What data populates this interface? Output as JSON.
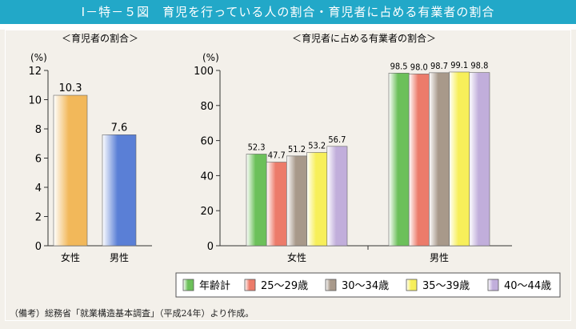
{
  "title": "Ⅰ－特－５図　育児を行っている人の割合・育児者に占める有業者の割合",
  "note": "（備考）総務省「就業構造基本調査」（平成24年）より作成。",
  "chart_data": [
    {
      "type": "bar",
      "title": "＜育児者の割合＞",
      "ylabel": "(%)",
      "ylim": [
        0,
        12
      ],
      "yticks": [
        0,
        2,
        4,
        6,
        8,
        10,
        12
      ],
      "categories": [
        "女性",
        "男性"
      ],
      "values": [
        10.3,
        7.6
      ],
      "colors": [
        "#f2b85a",
        "#5a7fd6"
      ]
    },
    {
      "type": "bar",
      "title": "＜育児者に占める有業者の割合＞",
      "ylabel": "(%)",
      "ylim": [
        0,
        100
      ],
      "yticks": [
        0,
        20,
        40,
        60,
        80,
        100
      ],
      "categories": [
        "女性",
        "男性"
      ],
      "series": [
        {
          "name": "年齢計",
          "values": [
            52.3,
            98.5
          ],
          "color": "#6cc05a"
        },
        {
          "name": "25～29歳",
          "values": [
            47.7,
            98.0
          ],
          "color": "#ec7b6a"
        },
        {
          "name": "30～34歳",
          "values": [
            51.2,
            98.7
          ],
          "color": "#a8998a"
        },
        {
          "name": "35～39歳",
          "values": [
            53.2,
            99.1
          ],
          "color": "#f7ef5a"
        },
        {
          "name": "40～44歳",
          "values": [
            56.7,
            98.8
          ],
          "color": "#c1aedb"
        }
      ],
      "legend": "bottom"
    }
  ]
}
